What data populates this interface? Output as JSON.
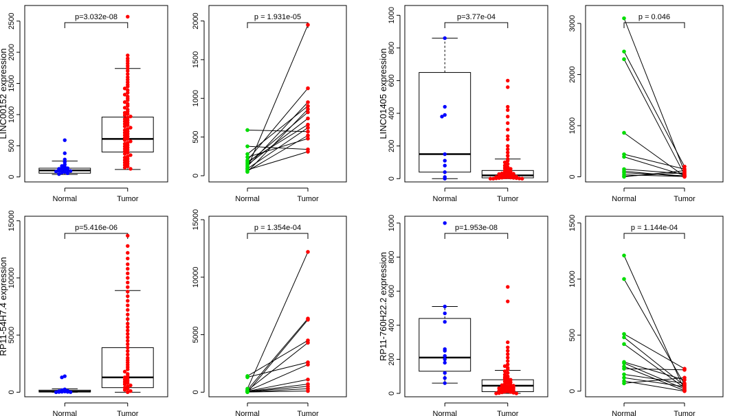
{
  "figure": "Expression of four lncRNAs in normal vs tumor tissue (unpaired boxplots and paired line plots)",
  "colors": {
    "normal_box": "#0000ff",
    "tumor_box": "#ff0000",
    "normal_paired": "#00dd00",
    "tumor_paired": "#ff0000",
    "line": "#000000"
  },
  "chart_data": [
    {
      "id": "linc00152-box",
      "type": "box",
      "ylabel": "LINC00152 expression",
      "categories": [
        "Normal",
        "Tumor"
      ],
      "yticks": [
        0,
        500,
        1000,
        1500,
        2000,
        2500
      ],
      "ylim": [
        -80,
        2750
      ],
      "pvalue": "p=3.032e-08",
      "boxes": [
        {
          "q1": 60,
          "median": 105,
          "q3": 140,
          "whisker_low": 40,
          "whisker_high": 255
        },
        {
          "q1": 400,
          "median": 610,
          "q3": 960,
          "whisker_low": 120,
          "whisker_high": 1740
        }
      ],
      "points": [
        [
          590,
          380,
          280,
          240,
          200,
          175,
          160,
          150,
          140,
          130,
          125,
          118,
          110,
          100,
          95,
          88,
          80,
          70,
          60,
          45
        ],
        [
          2570,
          1950,
          1900,
          1860,
          1820,
          1780,
          1740,
          1700,
          1650,
          1600,
          1560,
          1520,
          1480,
          1450,
          1420,
          1390,
          1350,
          1320,
          1290,
          1260,
          1230,
          1200,
          1170,
          1140,
          1110,
          1080,
          1050,
          1030,
          1010,
          990,
          970,
          950,
          930,
          910,
          890,
          870,
          850,
          830,
          810,
          790,
          770,
          750,
          730,
          710,
          690,
          670,
          650,
          630,
          610,
          590,
          570,
          550,
          530,
          510,
          490,
          470,
          450,
          430,
          410,
          390,
          370,
          350,
          330,
          310,
          290,
          270,
          250,
          230,
          210,
          190,
          170,
          150,
          130
        ]
      ]
    },
    {
      "id": "linc00152-paired",
      "type": "paired",
      "categories": [
        "Normal",
        "Tumor"
      ],
      "yticks": [
        0,
        500,
        1000,
        1500,
        2000
      ],
      "ylim": [
        -80,
        2200
      ],
      "pvalue": "p = 1.931e-05",
      "pairs": [
        [
          590,
          570
        ],
        [
          380,
          340
        ],
        [
          280,
          900
        ],
        [
          240,
          480
        ],
        [
          200,
          1130
        ],
        [
          180,
          660
        ],
        [
          160,
          820
        ],
        [
          140,
          740
        ],
        [
          120,
          950
        ],
        [
          100,
          1950
        ],
        [
          90,
          620
        ],
        [
          75,
          310
        ],
        [
          60,
          520
        ],
        [
          50,
          860
        ]
      ]
    },
    {
      "id": "linc01405-box",
      "type": "box",
      "ylabel": "LINC01405 expression",
      "categories": [
        "Normal",
        "Tumor"
      ],
      "yticks": [
        0,
        200,
        400,
        600,
        800,
        1000
      ],
      "ylim": [
        -20,
        1060
      ],
      "pvalue": "p=3.77e-04",
      "boxes": [
        {
          "q1": 40,
          "median": 150,
          "q3": 650,
          "whisker_low": 0,
          "whisker_high": 860
        },
        {
          "q1": 5,
          "median": 20,
          "q3": 50,
          "whisker_low": 0,
          "whisker_high": 120
        }
      ],
      "points": [
        [
          860,
          440,
          390,
          380,
          150,
          110,
          80,
          40,
          10,
          0
        ],
        [
          600,
          560,
          440,
          420,
          380,
          340,
          300,
          260,
          240,
          200,
          180,
          160,
          140,
          120,
          110,
          100,
          90,
          80,
          70,
          65,
          60,
          55,
          50,
          45,
          40,
          38,
          35,
          32,
          30,
          28,
          25,
          22,
          20,
          18,
          16,
          14,
          12,
          10,
          9,
          8,
          7,
          6,
          5,
          4,
          3,
          2,
          1,
          0,
          0,
          0
        ]
      ]
    },
    {
      "id": "linc01405-paired",
      "type": "paired",
      "categories": [
        "Normal",
        "Tumor"
      ],
      "yticks": [
        0,
        1000,
        2000,
        3000
      ],
      "ylim": [
        -100,
        3350
      ],
      "pvalue": "p = 0.046",
      "pairs": [
        [
          3100,
          100
        ],
        [
          2450,
          200
        ],
        [
          2300,
          40
        ],
        [
          860,
          10
        ],
        [
          440,
          150
        ],
        [
          390,
          30
        ],
        [
          150,
          60
        ],
        [
          110,
          0
        ],
        [
          80,
          20
        ],
        [
          40,
          5
        ],
        [
          10,
          80
        ],
        [
          0,
          120
        ]
      ]
    },
    {
      "id": "rp11-54h7-box",
      "type": "box",
      "ylabel": "RP11-54H7.4 expression",
      "categories": [
        "Normal",
        "Tumor"
      ],
      "yticks": [
        0,
        5000,
        10000,
        15000
      ],
      "ylim": [
        -400,
        15400
      ],
      "pvalue": "p=5.416e-06",
      "boxes": [
        {
          "q1": 20,
          "median": 60,
          "q3": 180,
          "whisker_low": 0,
          "whisker_high": 300
        },
        {
          "q1": 400,
          "median": 1300,
          "q3": 3900,
          "whisker_low": 0,
          "whisker_high": 8900
        }
      ],
      "points": [
        [
          1400,
          1300,
          250,
          180,
          120,
          90,
          60,
          40,
          30,
          20,
          10,
          0
        ],
        [
          13700,
          12800,
          12200,
          11700,
          11200,
          10800,
          10400,
          10000,
          9600,
          9200,
          8800,
          8400,
          8000,
          7600,
          7200,
          6800,
          6400,
          6000,
          5700,
          5400,
          5100,
          4800,
          4500,
          4200,
          3900,
          3600,
          3300,
          3000,
          2800,
          2600,
          2400,
          2200,
          2000,
          1800,
          1600,
          1400,
          1300,
          1200,
          1100,
          1000,
          900,
          800,
          700,
          600,
          500,
          400,
          300,
          200,
          100,
          0
        ]
      ]
    },
    {
      "id": "rp11-54h7-paired",
      "type": "paired",
      "categories": [
        "Normal",
        "Tumor"
      ],
      "yticks": [
        0,
        5000,
        10000,
        15000
      ],
      "ylim": [
        -400,
        15300
      ],
      "pvalue": "p = 1.354e-04",
      "pairs": [
        [
          1400,
          4500
        ],
        [
          1300,
          2600
        ],
        [
          300,
          12200
        ],
        [
          200,
          6400
        ],
        [
          150,
          4300
        ],
        [
          100,
          2400
        ],
        [
          80,
          1100
        ],
        [
          60,
          700
        ],
        [
          40,
          500
        ],
        [
          20,
          300
        ],
        [
          10,
          100
        ],
        [
          0,
          6300
        ]
      ]
    },
    {
      "id": "rp11-760h22-box",
      "type": "box",
      "ylabel": "RP11-760H22.2 expression",
      "categories": [
        "Normal",
        "Tumor"
      ],
      "yticks": [
        0,
        200,
        400,
        600,
        800,
        1000
      ],
      "ylim": [
        -20,
        1040
      ],
      "pvalue": "p=1.953e-08",
      "boxes": [
        {
          "q1": 130,
          "median": 210,
          "q3": 440,
          "whisker_low": 60,
          "whisker_high": 510
        },
        {
          "q1": 10,
          "median": 45,
          "q3": 80,
          "whisker_low": 0,
          "whisker_high": 135
        }
      ],
      "points": [
        [
          1000,
          510,
          470,
          420,
          260,
          250,
          220,
          200,
          180,
          120,
          90,
          60
        ],
        [
          625,
          540,
          300,
          270,
          250,
          230,
          210,
          190,
          170,
          160,
          150,
          140,
          130,
          120,
          110,
          100,
          95,
          90,
          85,
          80,
          75,
          70,
          65,
          60,
          55,
          50,
          48,
          45,
          42,
          40,
          38,
          35,
          32,
          30,
          28,
          25,
          22,
          20,
          18,
          15,
          12,
          10,
          8,
          6,
          4,
          2,
          0,
          0
        ]
      ]
    },
    {
      "id": "rp11-760h22-paired",
      "type": "paired",
      "categories": [
        "Normal",
        "Tumor"
      ],
      "yticks": [
        0,
        500,
        1000,
        1500
      ],
      "ylim": [
        -50,
        1560
      ],
      "pvalue": "p = 1.144e-04",
      "pairs": [
        [
          1210,
          10
        ],
        [
          1000,
          60
        ],
        [
          510,
          200
        ],
        [
          480,
          50
        ],
        [
          420,
          30
        ],
        [
          260,
          100
        ],
        [
          250,
          20
        ],
        [
          220,
          5
        ],
        [
          200,
          190
        ],
        [
          150,
          70
        ],
        [
          120,
          40
        ],
        [
          90,
          0
        ],
        [
          70,
          120
        ]
      ]
    }
  ]
}
